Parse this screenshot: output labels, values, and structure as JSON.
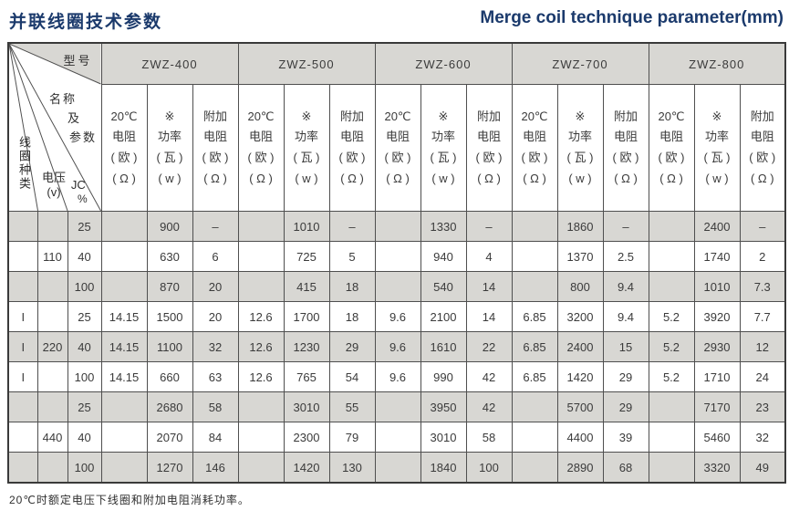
{
  "header": {
    "title_zh": "并联线圈技术参数",
    "title_en": "Merge coil technique parameter(mm)"
  },
  "footnote": "20℃时额定电压下线圈和附加电阻消耗功率。",
  "colors": {
    "accent_navy": "#1b3a6c",
    "row_gray": "#d8d7d3",
    "grid_line": "#4f4f4f"
  },
  "table": {
    "corner": {
      "model_label": "型号",
      "name_lines": [
        "名称",
        "及",
        "参数"
      ],
      "coil_type_label": "线圈种类",
      "voltage_label": "电压",
      "voltage_unit": "(v)",
      "jc_label": "JC",
      "jc_unit": "%"
    },
    "models": [
      "ZWZ-400",
      "ZWZ-500",
      "ZWZ-600",
      "ZWZ-700",
      "ZWZ-800"
    ],
    "sub_headers": [
      [
        "20℃",
        "电阻",
        "( 欧 )",
        "( Ω )"
      ],
      [
        "※",
        "功率",
        "( 瓦 )",
        "( w )"
      ],
      [
        "附加",
        "电阻",
        "( 欧 )",
        "( Ω )"
      ]
    ],
    "groups": [
      {
        "voltage": "110",
        "rows": [
          {
            "coil_type": "",
            "jc": "25",
            "values": [
              [
                "",
                "900",
                "–"
              ],
              [
                "",
                "1010",
                "–"
              ],
              [
                "",
                "1330",
                "–"
              ],
              [
                "",
                "1860",
                "–"
              ],
              [
                "",
                "2400",
                "–"
              ]
            ]
          },
          {
            "coil_type": "",
            "jc": "40",
            "values": [
              [
                "",
                "630",
                "6"
              ],
              [
                "",
                "725",
                "5"
              ],
              [
                "",
                "940",
                "4"
              ],
              [
                "",
                "1370",
                "2.5"
              ],
              [
                "",
                "1740",
                "2"
              ]
            ]
          },
          {
            "coil_type": "",
            "jc": "100",
            "values": [
              [
                "",
                "870",
                "20"
              ],
              [
                "",
                "415",
                "18"
              ],
              [
                "",
                "540",
                "14"
              ],
              [
                "",
                "800",
                "9.4"
              ],
              [
                "",
                "1010",
                "7.3"
              ]
            ]
          }
        ]
      },
      {
        "voltage": "220",
        "rows": [
          {
            "coil_type": "I",
            "jc": "25",
            "values": [
              [
                "14.15",
                "1500",
                "20"
              ],
              [
                "12.6",
                "1700",
                "18"
              ],
              [
                "9.6",
                "2100",
                "14"
              ],
              [
                "6.85",
                "3200",
                "9.4"
              ],
              [
                "5.2",
                "3920",
                "7.7"
              ]
            ]
          },
          {
            "coil_type": "I",
            "jc": "40",
            "values": [
              [
                "14.15",
                "1100",
                "32"
              ],
              [
                "12.6",
                "1230",
                "29"
              ],
              [
                "9.6",
                "1610",
                "22"
              ],
              [
                "6.85",
                "2400",
                "15"
              ],
              [
                "5.2",
                "2930",
                "12"
              ]
            ]
          },
          {
            "coil_type": "I",
            "jc": "100",
            "values": [
              [
                "14.15",
                "660",
                "63"
              ],
              [
                "12.6",
                "765",
                "54"
              ],
              [
                "9.6",
                "990",
                "42"
              ],
              [
                "6.85",
                "1420",
                "29"
              ],
              [
                "5.2",
                "1710",
                "24"
              ]
            ]
          }
        ]
      },
      {
        "voltage": "440",
        "rows": [
          {
            "coil_type": "",
            "jc": "25",
            "values": [
              [
                "",
                "2680",
                "58"
              ],
              [
                "",
                "3010",
                "55"
              ],
              [
                "",
                "3950",
                "42"
              ],
              [
                "",
                "5700",
                "29"
              ],
              [
                "",
                "7170",
                "23"
              ]
            ]
          },
          {
            "coil_type": "",
            "jc": "40",
            "values": [
              [
                "",
                "2070",
                "84"
              ],
              [
                "",
                "2300",
                "79"
              ],
              [
                "",
                "3010",
                "58"
              ],
              [
                "",
                "4400",
                "39"
              ],
              [
                "",
                "5460",
                "32"
              ]
            ]
          },
          {
            "coil_type": "",
            "jc": "100",
            "values": [
              [
                "",
                "1270",
                "146"
              ],
              [
                "",
                "1420",
                "130"
              ],
              [
                "",
                "1840",
                "100"
              ],
              [
                "",
                "2890",
                "68"
              ],
              [
                "",
                "3320",
                "49"
              ]
            ]
          }
        ]
      }
    ]
  }
}
